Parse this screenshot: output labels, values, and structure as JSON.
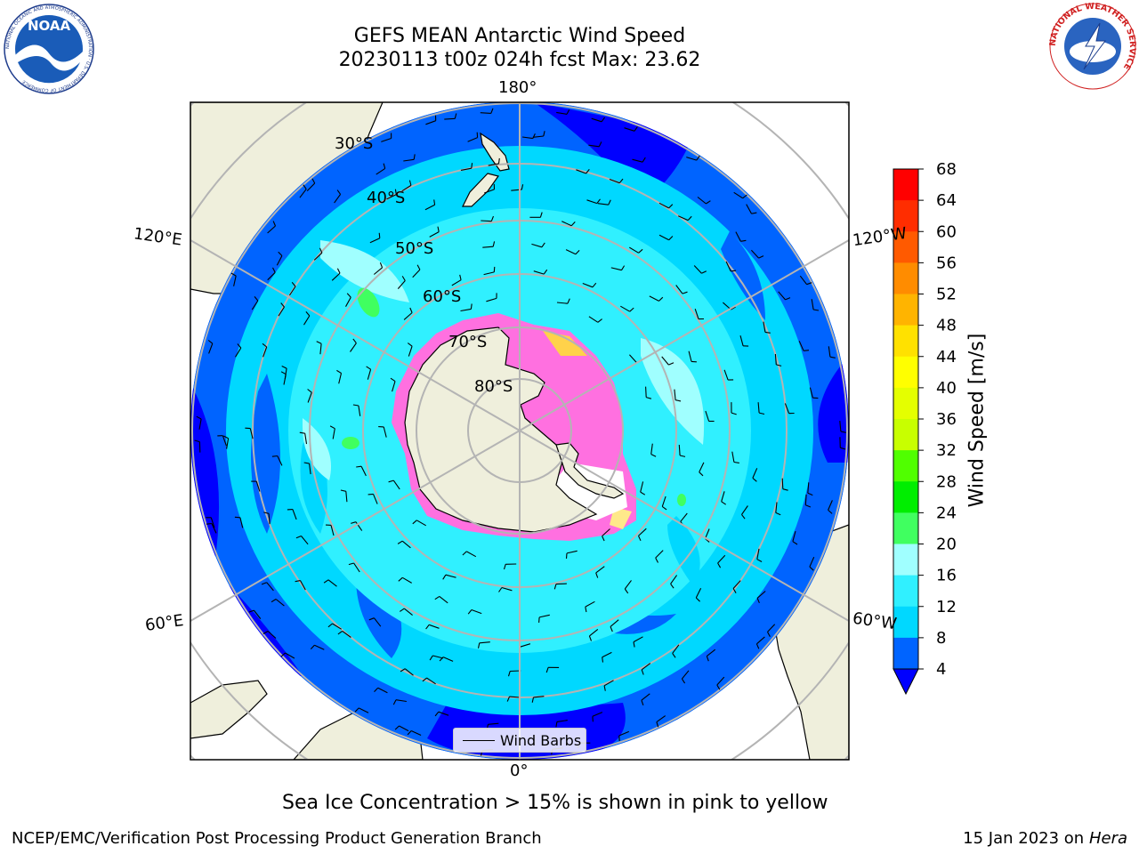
{
  "title": {
    "line1": "GEFS MEAN Antarctic Wind Speed",
    "line2": "20230113 t00z 024h fcst   Max: 23.62"
  },
  "map": {
    "longitude_labels": {
      "top": "180°",
      "bottom": "0°",
      "upper_left": "120°E",
      "upper_right": "120°W",
      "lower_left": "60°E",
      "lower_right": "60°W"
    },
    "latitude_labels": [
      "30°S",
      "40°S",
      "50°S",
      "60°S",
      "70°S",
      "80°S"
    ],
    "legend_label": "Wind Barbs"
  },
  "colorbar": {
    "label": "Wind Speed [m/s]",
    "ticks": [
      "4",
      "8",
      "12",
      "16",
      "20",
      "24",
      "28",
      "32",
      "36",
      "40",
      "44",
      "48",
      "52",
      "56",
      "60",
      "64",
      "68"
    ],
    "colors": [
      "#0000ff",
      "#0064ff",
      "#00d8ff",
      "#30f0ff",
      "#a0ffff",
      "#40ff60",
      "#00ee00",
      "#50ff00",
      "#c8ff00",
      "#e4ff00",
      "#ffff00",
      "#ffe100",
      "#ffb400",
      "#ff8c00",
      "#ff5a00",
      "#ff2d00",
      "#ff0000"
    ]
  },
  "notes": {
    "sea_ice": "Sea Ice Concentration > 15% is shown in pink to yellow"
  },
  "footer": {
    "left": "NCEP/EMC/Verification Post Processing Product Generation Branch",
    "right_prefix": "15 Jan 2023 on ",
    "right_host": "Hera"
  },
  "logos": {
    "left": "NOAA",
    "left_ring": "NATIONAL OCEANIC AND ATMOSPHERIC ADMINISTRATION · U.S. DEPARTMENT OF COMMERCE",
    "right_ring": "NATIONAL WEATHER SERVICE"
  }
}
